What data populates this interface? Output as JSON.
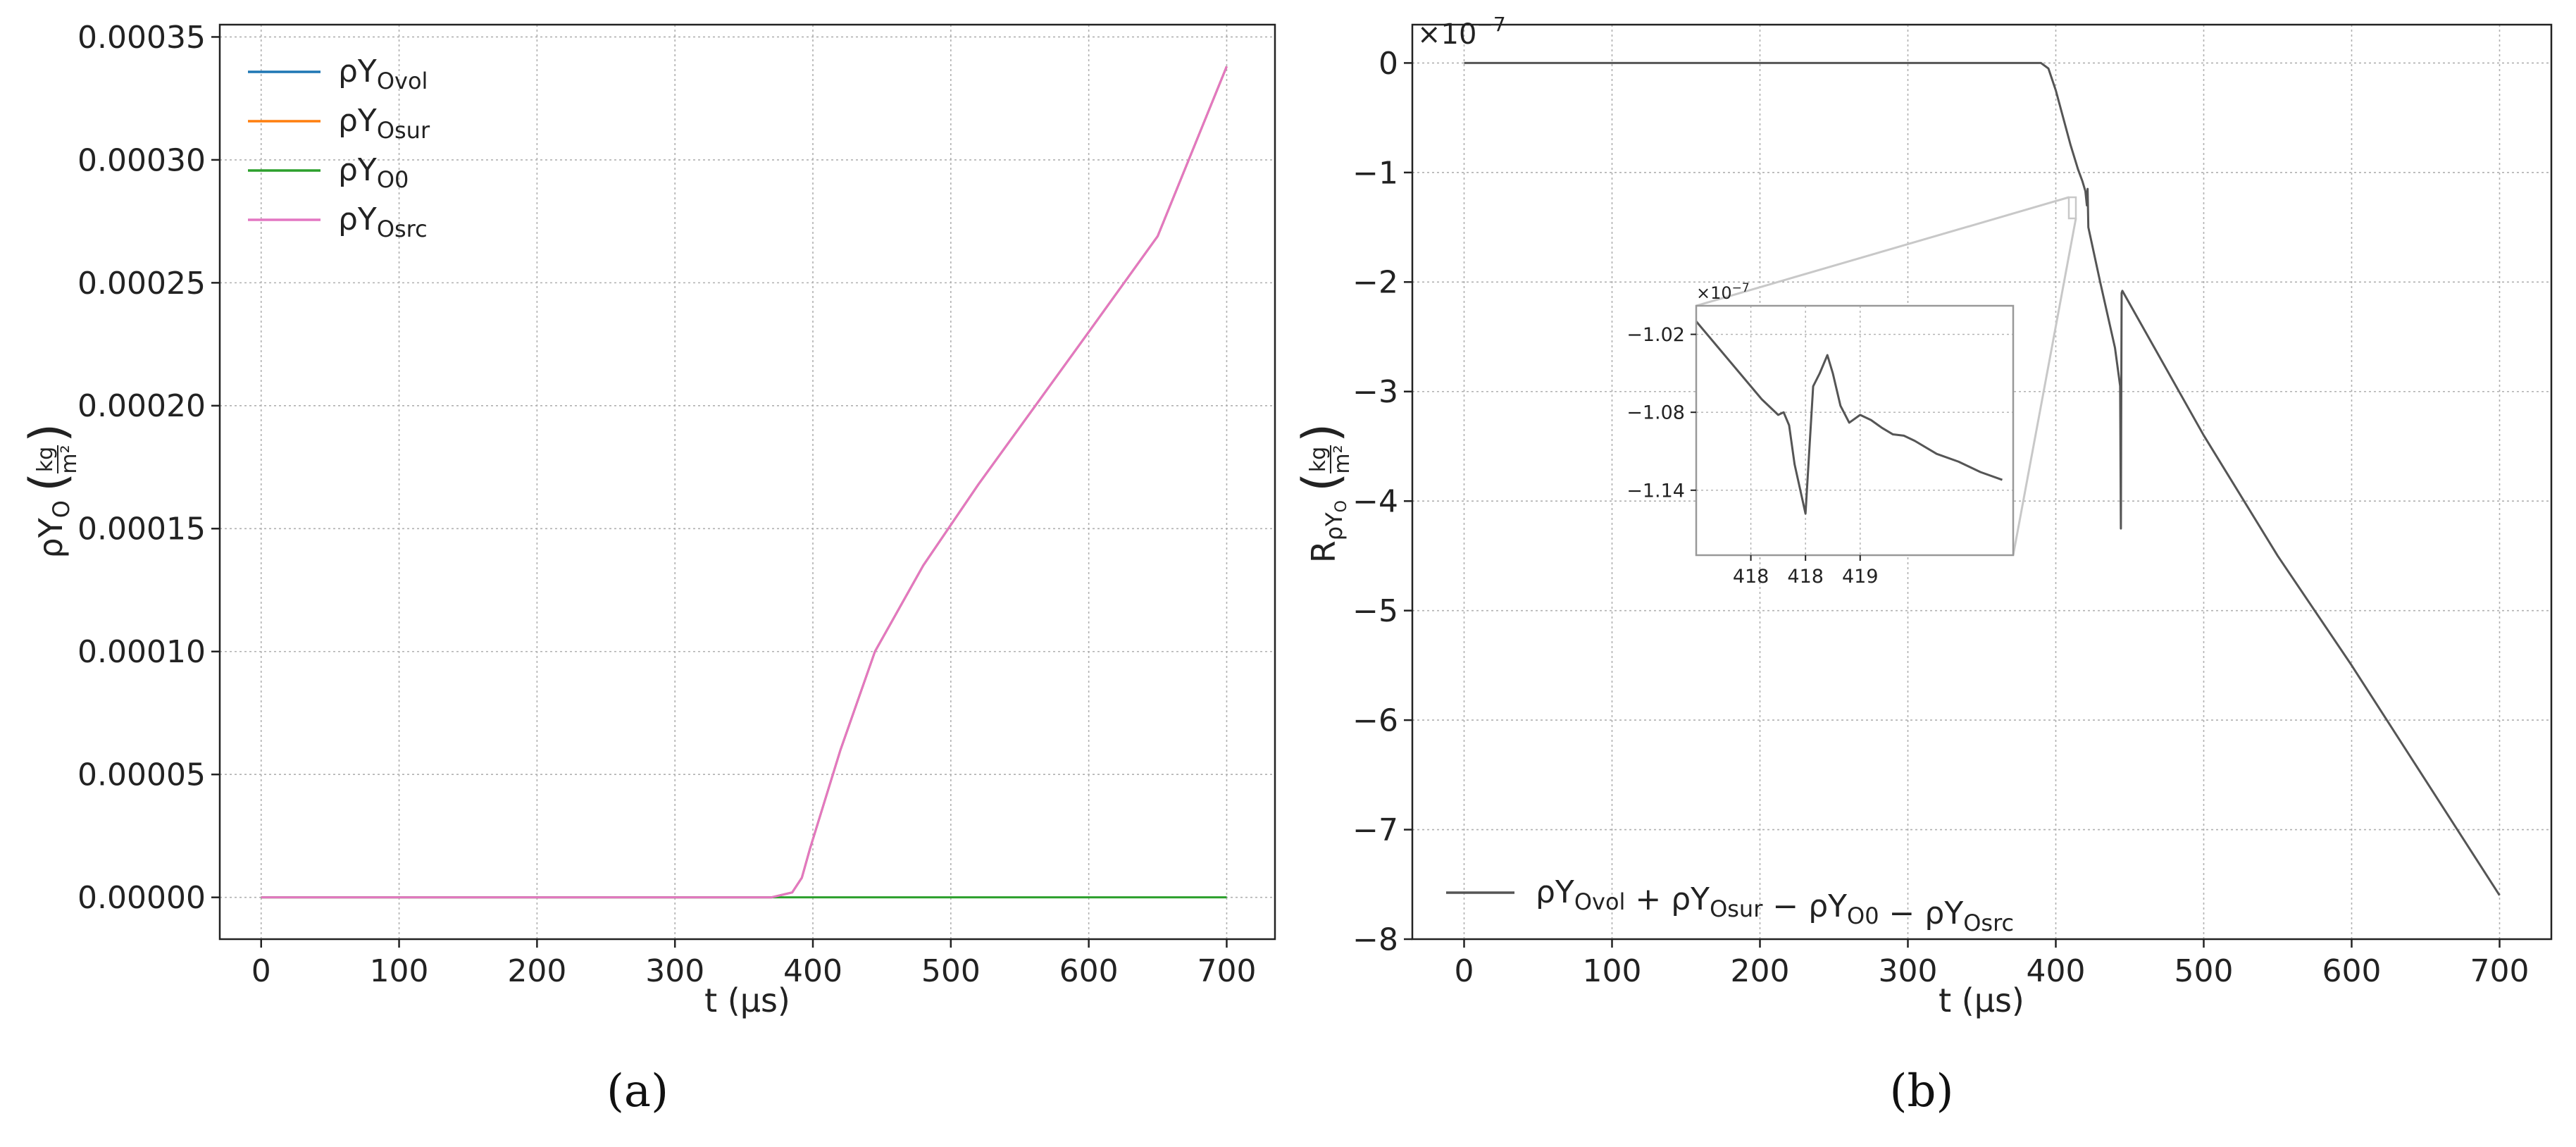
{
  "chart_data": [
    {
      "panel": "a",
      "caption": "(a)",
      "type": "line",
      "xlabel": "t (μs)",
      "ylabel": {
        "base": "ρY",
        "sub": "O",
        "unit_num": "kg",
        "unit_den": "m²"
      },
      "xlim": [
        -30,
        735
      ],
      "ylim": [
        -1.7e-05,
        0.000355
      ],
      "xticks": [
        0,
        100,
        200,
        300,
        400,
        500,
        600,
        700
      ],
      "yticks": [
        {
          "v": 0.0,
          "label": "0.00000"
        },
        {
          "v": 5e-05,
          "label": "0.00005"
        },
        {
          "v": 0.0001,
          "label": "0.00010"
        },
        {
          "v": 0.00015,
          "label": "0.00015"
        },
        {
          "v": 0.0002,
          "label": "0.00020"
        },
        {
          "v": 0.00025,
          "label": "0.00025"
        },
        {
          "v": 0.0003,
          "label": "0.00030"
        },
        {
          "v": 0.00035,
          "label": "0.00035"
        }
      ],
      "grid": true,
      "legend": "top-left",
      "series": [
        {
          "name": "ρY",
          "sub": "Ovol",
          "color": "#1f77b4",
          "x": [
            0,
            370,
            385,
            392,
            398,
            420,
            445,
            480,
            520,
            560,
            600,
            650,
            700
          ],
          "y": [
            0,
            0,
            2e-06,
            8e-06,
            2e-05,
            6e-05,
            0.0001,
            0.000135,
            0.000168,
            0.000199,
            0.00023,
            0.000269,
            0.000338
          ]
        },
        {
          "name": "ρY",
          "sub": "Osur",
          "color": "#ff7f0e",
          "x": [
            0,
            370,
            385,
            392,
            398,
            420,
            445,
            480,
            520,
            560,
            600,
            650,
            700
          ],
          "y": [
            0,
            0,
            2e-06,
            8e-06,
            2e-05,
            6e-05,
            0.0001,
            0.000135,
            0.000168,
            0.000199,
            0.00023,
            0.000269,
            0.000338
          ]
        },
        {
          "name": "ρY",
          "sub": "O0",
          "color": "#2ca02c",
          "x": [
            0,
            700
          ],
          "y": [
            0,
            0
          ]
        },
        {
          "name": "ρY",
          "sub": "Osrc",
          "color": "#e377c2",
          "x": [
            0,
            370,
            385,
            392,
            398,
            420,
            445,
            480,
            520,
            560,
            600,
            650,
            700
          ],
          "y": [
            0,
            0,
            2e-06,
            8e-06,
            2e-05,
            6e-05,
            0.0001,
            0.000135,
            0.000168,
            0.000199,
            0.00023,
            0.000269,
            0.000338
          ]
        }
      ]
    },
    {
      "panel": "b",
      "caption": "(b)",
      "type": "line",
      "xlabel": "t (μs)",
      "ylabel": {
        "base": "R",
        "sub": "ρY",
        "subsub": "O",
        "unit_num": "kg",
        "unit_den": "m²"
      },
      "y_multiplier": "×10",
      "y_multiplier_exp": "−7",
      "xlim": [
        -35,
        735
      ],
      "ylim": [
        -8.0,
        0.35
      ],
      "xticks": [
        0,
        100,
        200,
        300,
        400,
        500,
        600,
        700
      ],
      "yticks": [
        {
          "v": 0,
          "label": "0"
        },
        {
          "v": -1,
          "label": "−1"
        },
        {
          "v": -2,
          "label": "−2"
        },
        {
          "v": -3,
          "label": "−3"
        },
        {
          "v": -4,
          "label": "−4"
        },
        {
          "v": -5,
          "label": "−5"
        },
        {
          "v": -6,
          "label": "−6"
        },
        {
          "v": -7,
          "label": "−7"
        },
        {
          "v": -8,
          "label": "−8"
        }
      ],
      "grid": true,
      "legend": "bottom-left",
      "series": [
        {
          "name": "ρY_Ovol + ρY_Osur − ρY_O0 − ρY_Osrc",
          "legend_parts": [
            {
              "t": "ρY",
              "s": "Ovol"
            },
            {
              "t": " + ρY",
              "s": "Osur"
            },
            {
              "t": " − ρY",
              "s": "O0"
            },
            {
              "t": " − ρY",
              "s": "Osrc"
            }
          ],
          "color": "#555555",
          "x": [
            0,
            390,
            395,
            400,
            405,
            410,
            415,
            418,
            420,
            421,
            421.5,
            422,
            430,
            440,
            443.5,
            444,
            444.2,
            444.5,
            445,
            500,
            550,
            600,
            650,
            700
          ],
          "y": [
            0,
            0,
            -0.05,
            -0.25,
            -0.5,
            -0.75,
            -0.97,
            -1.08,
            -1.17,
            -1.3,
            -1.15,
            -1.5,
            -2.0,
            -2.6,
            -2.95,
            -4.25,
            -3.3,
            -2.1,
            -2.08,
            -3.4,
            -4.5,
            -5.5,
            -6.55,
            -7.6
          ]
        }
      ],
      "inset": {
        "y_multiplier": "×10",
        "y_multiplier_exp": "−7",
        "xlim": [
          417.2,
          420.1
        ],
        "ylim": [
          -1.19,
          -0.998
        ],
        "xticks": [
          {
            "v": 417.7,
            "label": "418"
          },
          {
            "v": 418.2,
            "label": "418"
          },
          {
            "v": 418.7,
            "label": "419"
          }
        ],
        "yticks": [
          {
            "v": -1.02,
            "label": "−1.02"
          },
          {
            "v": -1.08,
            "label": "−1.08"
          },
          {
            "v": -1.14,
            "label": "−1.14"
          }
        ],
        "series_x": [
          417.2,
          417.4,
          417.6,
          417.8,
          417.95,
          418.0,
          418.05,
          418.1,
          418.2,
          418.27,
          418.33,
          418.4,
          418.45,
          418.52,
          418.6,
          418.7,
          418.8,
          418.9,
          419.0,
          419.1,
          419.2,
          419.4,
          419.6,
          419.8,
          420.0
        ],
        "series_y": [
          -1.01,
          -1.03,
          -1.05,
          -1.07,
          -1.082,
          -1.08,
          -1.09,
          -1.12,
          -1.158,
          -1.06,
          -1.05,
          -1.036,
          -1.05,
          -1.075,
          -1.088,
          -1.082,
          -1.086,
          -1.092,
          -1.097,
          -1.098,
          -1.102,
          -1.112,
          -1.118,
          -1.126,
          -1.132
        ]
      }
    }
  ]
}
